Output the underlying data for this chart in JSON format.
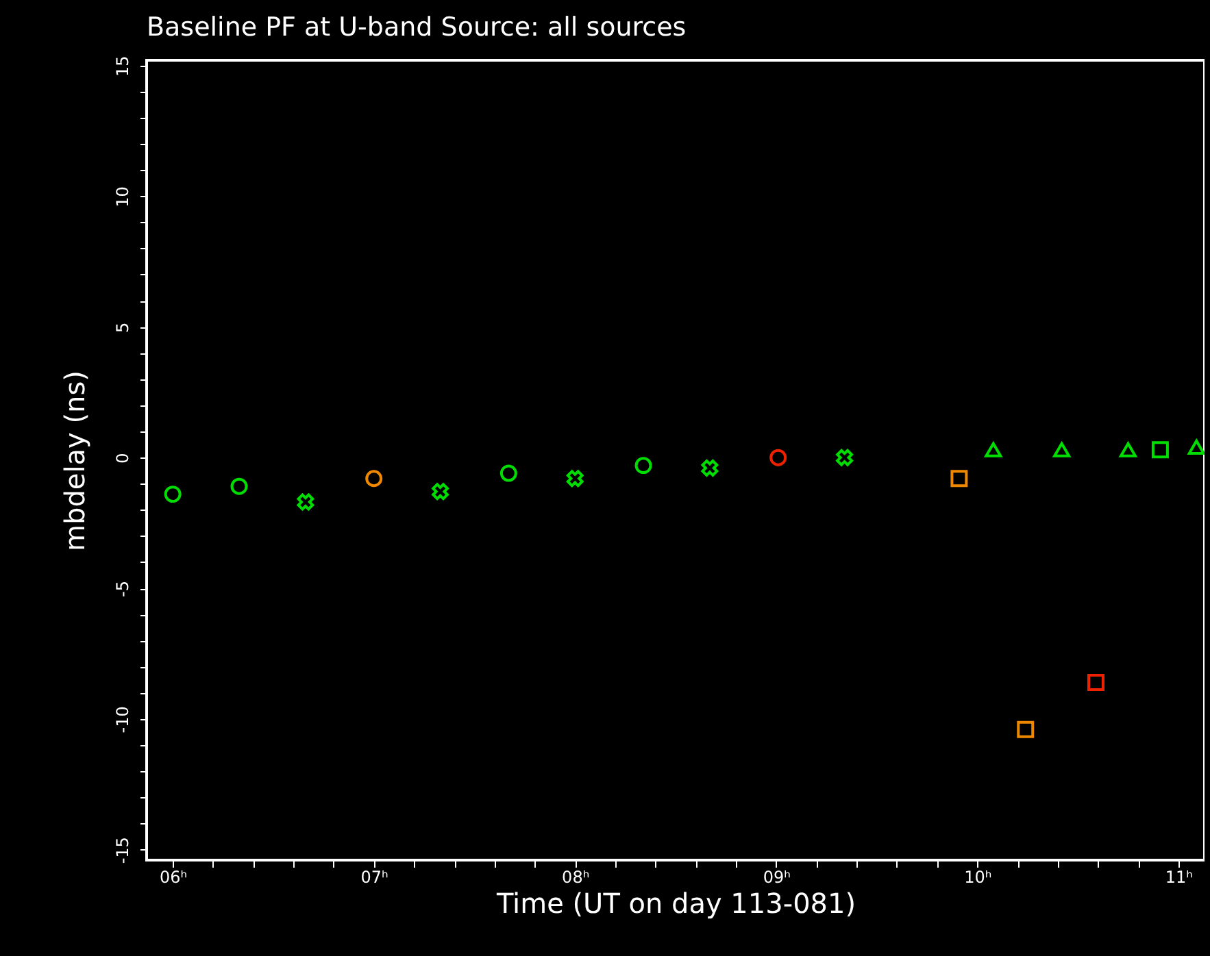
{
  "chart_data": {
    "type": "scatter",
    "title": "Baseline PF at U-band    Source: all sources",
    "xlabel": "Time (UT on day 113-081)",
    "ylabel": "mbdelay (ns)",
    "xlim": [
      5.87,
      11.13
    ],
    "ylim": [
      -15.4,
      15.2
    ],
    "xticks": [
      {
        "value": 6,
        "label": "06ʰ"
      },
      {
        "value": 6.2,
        "label": null
      },
      {
        "value": 6.4,
        "label": null
      },
      {
        "value": 6.6,
        "label": null
      },
      {
        "value": 6.8,
        "label": null
      },
      {
        "value": 7,
        "label": "07ʰ"
      },
      {
        "value": 7.2,
        "label": null
      },
      {
        "value": 7.4,
        "label": null
      },
      {
        "value": 7.6,
        "label": null
      },
      {
        "value": 7.8,
        "label": null
      },
      {
        "value": 8,
        "label": "08ʰ"
      },
      {
        "value": 8.2,
        "label": null
      },
      {
        "value": 8.4,
        "label": null
      },
      {
        "value": 8.6,
        "label": null
      },
      {
        "value": 8.8,
        "label": null
      },
      {
        "value": 9,
        "label": "09ʰ"
      },
      {
        "value": 9.2,
        "label": null
      },
      {
        "value": 9.4,
        "label": null
      },
      {
        "value": 9.6,
        "label": null
      },
      {
        "value": 9.8,
        "label": null
      },
      {
        "value": 10,
        "label": "10ʰ"
      },
      {
        "value": 10.2,
        "label": null
      },
      {
        "value": 10.4,
        "label": null
      },
      {
        "value": 10.6,
        "label": null
      },
      {
        "value": 10.8,
        "label": null
      },
      {
        "value": 11,
        "label": "11ʰ"
      }
    ],
    "yticks": [
      -15,
      {
        "value": -14,
        "label": null
      },
      {
        "value": -13,
        "label": null
      },
      {
        "value": -12,
        "label": null
      },
      {
        "value": -11,
        "label": null
      },
      -10,
      {
        "value": -9,
        "label": null
      },
      {
        "value": -8,
        "label": null
      },
      {
        "value": -7,
        "label": null
      },
      {
        "value": -6,
        "label": null
      },
      -5,
      {
        "value": -4,
        "label": null
      },
      {
        "value": -3,
        "label": null
      },
      {
        "value": -2,
        "label": null
      },
      {
        "value": -1,
        "label": null
      },
      0,
      {
        "value": 1,
        "label": null
      },
      {
        "value": 2,
        "label": null
      },
      {
        "value": 3,
        "label": null
      },
      {
        "value": 4,
        "label": null
      },
      5,
      {
        "value": 6,
        "label": null
      },
      {
        "value": 7,
        "label": null
      },
      {
        "value": 8,
        "label": null
      },
      {
        "value": 9,
        "label": null
      },
      10,
      {
        "value": 11,
        "label": null
      },
      {
        "value": 12,
        "label": null
      },
      {
        "value": 13,
        "label": null
      },
      {
        "value": 14,
        "label": null
      },
      15
    ],
    "grid": false,
    "series": [
      {
        "color": "#00dd00",
        "marker": "circle",
        "x": [
          6.0,
          6.33,
          7.67,
          8.34
        ],
        "values": [
          -1.4,
          -1.1,
          -0.6,
          -0.3
        ]
      },
      {
        "color": "#00dd00",
        "marker": "cross",
        "x": [
          6.66,
          7.33,
          8.0,
          8.67,
          9.34
        ],
        "values": [
          -1.7,
          -1.3,
          -0.8,
          -0.4,
          0.0
        ]
      },
      {
        "color": "#00dd00",
        "marker": "triangle",
        "x": [
          10.08,
          10.42,
          10.75,
          11.09
        ],
        "values": [
          0.3,
          0.3,
          0.3,
          0.4
        ]
      },
      {
        "color": "#00dd00",
        "marker": "square",
        "x": [
          10.91
        ],
        "values": [
          0.3
        ]
      },
      {
        "color": "#ee8800",
        "marker": "circle",
        "x": [
          7.0
        ],
        "values": [
          -0.8
        ]
      },
      {
        "color": "#ee8800",
        "marker": "square",
        "x": [
          9.91,
          10.24
        ],
        "values": [
          -0.8,
          -10.4
        ]
      },
      {
        "color": "#ee2200",
        "marker": "circle",
        "x": [
          9.01
        ],
        "values": [
          0.0
        ]
      },
      {
        "color": "#ee2200",
        "marker": "square",
        "x": [
          10.59
        ],
        "values": [
          -8.6
        ]
      }
    ]
  }
}
